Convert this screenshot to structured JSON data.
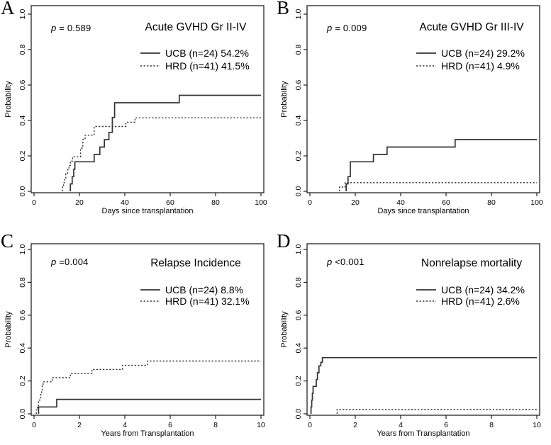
{
  "figure": {
    "background": "#ffffff",
    "curve_color": "#333333",
    "text_color": "#000000",
    "axis_color": "#222222"
  },
  "chart_data": [
    {
      "panel_label": "A",
      "type": "line",
      "subtype": "kaplan-meier-step",
      "title": "Acute GVHD Gr II-IV",
      "p_symbol": "p",
      "p_text": " = 0.589",
      "xlabel": "Days since transplantation",
      "ylabel": "Probability",
      "xlim": [
        0,
        100
      ],
      "ylim": [
        0,
        1
      ],
      "xticks": [
        0,
        20,
        40,
        60,
        80,
        100
      ],
      "yticks": [
        "0.0",
        "0.2",
        "0.4",
        "0.6",
        "0.8",
        "1.0"
      ],
      "grid": "off",
      "legend_position": "upper-right-inside",
      "legend": [
        {
          "label": "UCB (n=24) 54.2%",
          "style": "solid"
        },
        {
          "label": "HRD (n=41) 41.5%",
          "style": "dotted"
        }
      ],
      "series": [
        {
          "name": "UCB",
          "style": "solid",
          "steps": [
            [
              16,
              0.042
            ],
            [
              16.8,
              0.083
            ],
            [
              17.5,
              0.125
            ],
            [
              18,
              0.167
            ],
            [
              26.5,
              0.208
            ],
            [
              29,
              0.25
            ],
            [
              31,
              0.292
            ],
            [
              33,
              0.333
            ],
            [
              34.5,
              0.417
            ],
            [
              35.5,
              0.5
            ],
            [
              64,
              0.542
            ]
          ],
          "final_value": 0.542
        },
        {
          "name": "HRD",
          "style": "dotted",
          "steps": [
            [
              12.5,
              0.024
            ],
            [
              13,
              0.049
            ],
            [
              13.5,
              0.073
            ],
            [
              14,
              0.098
            ],
            [
              14.8,
              0.122
            ],
            [
              15.4,
              0.146
            ],
            [
              16,
              0.171
            ],
            [
              17,
              0.195
            ],
            [
              20.5,
              0.244
            ],
            [
              21.5,
              0.293
            ],
            [
              22.5,
              0.317
            ],
            [
              26.5,
              0.366
            ],
            [
              40.5,
              0.39
            ],
            [
              44.5,
              0.415
            ]
          ],
          "final_value": 0.415
        }
      ]
    },
    {
      "panel_label": "B",
      "type": "line",
      "subtype": "kaplan-meier-step",
      "title": "Acute GVHD Gr III-IV",
      "p_symbol": "p",
      "p_text": " = 0.009",
      "xlabel": "Days since transplantation",
      "ylabel": "Probability",
      "xlim": [
        0,
        100
      ],
      "ylim": [
        0,
        1
      ],
      "xticks": [
        0,
        20,
        40,
        60,
        80,
        100
      ],
      "yticks": [
        "0.0",
        "0.2",
        "0.4",
        "0.6",
        "0.8",
        "1.0"
      ],
      "grid": "off",
      "legend_position": "upper-right-inside",
      "legend": [
        {
          "label": "UCB (n=24) 29.2%",
          "style": "solid"
        },
        {
          "label": "HRD (n=41) 4.9%",
          "style": "dotted"
        }
      ],
      "series": [
        {
          "name": "UCB",
          "style": "solid",
          "steps": [
            [
              16,
              0.042
            ],
            [
              16.8,
              0.083
            ],
            [
              17.8,
              0.167
            ],
            [
              28,
              0.208
            ],
            [
              34,
              0.25
            ],
            [
              64,
              0.292
            ]
          ],
          "final_value": 0.292
        },
        {
          "name": "HRD",
          "style": "dotted",
          "steps": [
            [
              13,
              0.024
            ],
            [
              15.5,
              0.049
            ]
          ],
          "final_value": 0.049
        }
      ]
    },
    {
      "panel_label": "C",
      "type": "line",
      "subtype": "kaplan-meier-step",
      "title": "Relapse Incidence",
      "p_symbol": "p",
      "p_text": " =0.004",
      "xlabel": "Years from Transplantation",
      "ylabel": "Probability",
      "xlim": [
        0,
        10
      ],
      "ylim": [
        0,
        1
      ],
      "xticks": [
        0,
        2,
        4,
        6,
        8,
        10
      ],
      "yticks": [
        "0.0",
        "0.2",
        "0.4",
        "0.6",
        "0.8",
        "1.0"
      ],
      "grid": "off",
      "legend_position": "upper-right-inside",
      "legend": [
        {
          "label": "UCB (n=24) 8.8%",
          "style": "solid"
        },
        {
          "label": "HRD (n=41) 32.1%",
          "style": "dotted"
        }
      ],
      "series": [
        {
          "name": "UCB",
          "style": "solid",
          "steps": [
            [
              0.2,
              0.042
            ],
            [
              1.0,
              0.088
            ]
          ],
          "final_value": 0.088
        },
        {
          "name": "HRD",
          "style": "dotted",
          "steps": [
            [
              0.1,
              0.024
            ],
            [
              0.15,
              0.049
            ],
            [
              0.2,
              0.073
            ],
            [
              0.25,
              0.098
            ],
            [
              0.3,
              0.122
            ],
            [
              0.33,
              0.146
            ],
            [
              0.36,
              0.171
            ],
            [
              0.4,
              0.195
            ],
            [
              0.8,
              0.22
            ],
            [
              1.6,
              0.245
            ],
            [
              2.55,
              0.27
            ],
            [
              3.9,
              0.295
            ],
            [
              5.0,
              0.321
            ]
          ],
          "final_value": 0.321
        }
      ]
    },
    {
      "panel_label": "D",
      "type": "line",
      "subtype": "kaplan-meier-step",
      "title": "Nonrelapse mortality",
      "p_symbol": "p",
      "p_text": " <0.001",
      "xlabel": "Years from Transplantation",
      "ylabel": "Probability",
      "xlim": [
        0,
        10
      ],
      "ylim": [
        0,
        1
      ],
      "xticks": [
        0,
        2,
        4,
        6,
        8,
        10
      ],
      "yticks": [
        "0.0",
        "0.2",
        "0.4",
        "0.6",
        "0.8",
        "1.0"
      ],
      "grid": "off",
      "legend_position": "upper-right-inside",
      "legend": [
        {
          "label": "UCB (n=24) 34.2%",
          "style": "solid"
        },
        {
          "label": "HRD (n=41) 2.6%",
          "style": "dotted"
        }
      ],
      "series": [
        {
          "name": "UCB",
          "style": "solid",
          "steps": [
            [
              0.05,
              0.042
            ],
            [
              0.08,
              0.083
            ],
            [
              0.11,
              0.125
            ],
            [
              0.14,
              0.167
            ],
            [
              0.28,
              0.208
            ],
            [
              0.33,
              0.25
            ],
            [
              0.4,
              0.292
            ],
            [
              0.48,
              0.313
            ],
            [
              0.55,
              0.342
            ]
          ],
          "final_value": 0.342
        },
        {
          "name": "HRD",
          "style": "dotted",
          "steps": [
            [
              1.2,
              0.026
            ]
          ],
          "final_value": 0.026
        }
      ]
    }
  ]
}
